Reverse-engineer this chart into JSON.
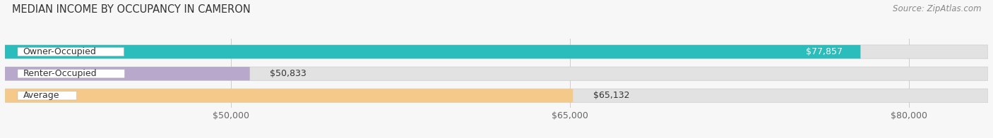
{
  "title": "MEDIAN INCOME BY OCCUPANCY IN CAMERON",
  "source": "Source: ZipAtlas.com",
  "categories": [
    "Owner-Occupied",
    "Renter-Occupied",
    "Average"
  ],
  "values": [
    77857,
    50833,
    65132
  ],
  "bar_colors": [
    "#2bbcbc",
    "#b8a8cc",
    "#f5c98a"
  ],
  "bar_edge_colors": [
    "#22a0a0",
    "#9a88b8",
    "#dfa870"
  ],
  "value_labels": [
    "$77,857",
    "$50,833",
    "$65,132"
  ],
  "value_label_inside": [
    true,
    false,
    false
  ],
  "xmin": 40000,
  "xmax": 83500,
  "xticks": [
    50000,
    65000,
    80000
  ],
  "xtick_labels": [
    "$50,000",
    "$65,000",
    "$80,000"
  ],
  "background_color": "#f7f7f7",
  "bar_bg_color": "#e2e2e2",
  "title_fontsize": 10.5,
  "source_fontsize": 8.5,
  "tick_fontsize": 9,
  "label_fontsize": 9,
  "value_fontsize": 9
}
